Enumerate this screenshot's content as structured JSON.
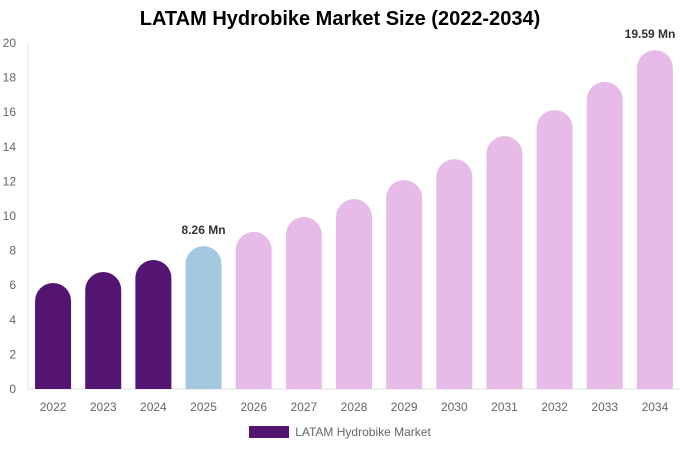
{
  "chart_data": {
    "type": "bar",
    "title": "LATAM Hydrobike Market Size (2022-2034)",
    "categories": [
      "2022",
      "2023",
      "2024",
      "2025",
      "2026",
      "2027",
      "2028",
      "2029",
      "2030",
      "2031",
      "2032",
      "2033",
      "2034"
    ],
    "series": [
      {
        "name": "LATAM Hydrobike Market",
        "values": [
          6.13,
          6.76,
          7.46,
          8.26,
          9.08,
          9.94,
          10.98,
          12.08,
          13.29,
          14.62,
          16.13,
          17.75,
          19.59
        ]
      }
    ],
    "bar_colors": [
      "#531472",
      "#531472",
      "#531472",
      "#a3c9de",
      "#e6bbe8",
      "#e6bbe8",
      "#e6bbe8",
      "#e6bbe8",
      "#e6bbe8",
      "#e6bbe8",
      "#e6bbe8",
      "#e6bbe8",
      "#e6bbe8"
    ],
    "data_labels": [
      {
        "category": "2025",
        "text": "8.26 Mn"
      },
      {
        "category": "2034",
        "text": "19.59 Mn"
      }
    ],
    "yticks": [
      "0",
      "2",
      "4",
      "6",
      "8",
      "10",
      "12",
      "14",
      "16",
      "18",
      "20"
    ],
    "ylim": [
      0,
      20
    ],
    "xlabel": "",
    "ylabel": "",
    "grid": false,
    "legend": {
      "placement": "bottom",
      "label": "LATAM Hydrobike Market",
      "color": "#531472"
    }
  }
}
